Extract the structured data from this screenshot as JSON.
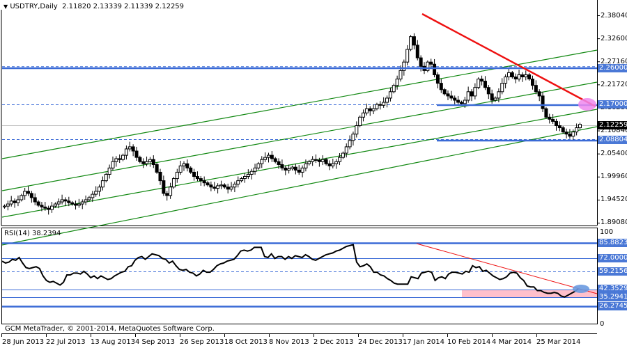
{
  "header": {
    "symbol_timeframe": "USDTRY,Daily",
    "ohlc": "2.11820 2.13339 2.11339 2.12259",
    "title_full": "USDTRY,Daily  2.11820 2.13339 2.11339 2.12259"
  },
  "indicator": {
    "title": "RSI(14) 38.2394"
  },
  "footer": {
    "copyright": "GCM MetaTrader, © 2001-2014, MetaQuotes Software Corp."
  },
  "colors": {
    "candle": "#000000",
    "channel": "#118811",
    "trendline": "#ee1111",
    "level": "#3a6ad6",
    "current_price_line": "#c0c0c0",
    "highlight_pink": "#ee88ee",
    "highlight_blue": "#6a9ae0",
    "rsi_zone": "#ffc0cb"
  },
  "chart_data": [
    {
      "type": "candlestick",
      "title": "USDTRY,Daily",
      "ohlc_last": {
        "open": 2.1182,
        "high": 2.13339,
        "low": 2.11339,
        "close": 2.12259
      },
      "y_ticks": [
        "2.38040",
        "2.32600",
        "2.27160",
        "2.21720",
        "2.16280",
        "2.10840",
        "2.05400",
        "1.99960",
        "1.94520",
        "1.89080"
      ],
      "ylim": [
        1.8908,
        2.3804
      ],
      "x_ticks": [
        "28 Jun 2013",
        "22 Jul 2013",
        "13 Aug 2013",
        "4 Sep 2013",
        "26 Sep 2013",
        "18 Oct 2013",
        "8 Nov 2013",
        "2 Dec 2013",
        "24 Dec 2013",
        "17 Jan 2014",
        "10 Feb 2014",
        "4 Mar 2014",
        "25 Mar 2014"
      ],
      "horizontal_levels": [
        {
          "label": "2.26000",
          "value": 2.26,
          "style": "solid-partial"
        },
        {
          "label": "2.17000",
          "value": 2.17,
          "style": "solid-partial"
        },
        {
          "label": "2.08804",
          "value": 2.08804,
          "style": "solid-partial"
        }
      ],
      "current_price": {
        "label": "2.12259",
        "value": 2.12259
      },
      "trendline": {
        "from": {
          "date": "19 Jan 2014",
          "value": 2.376
        },
        "to": {
          "date": "9 Apr 2014",
          "value": 2.165
        }
      },
      "channel": "4 parallel ascending green lines",
      "closes_approx": [
        1.93,
        1.935,
        1.942,
        1.938,
        1.945,
        1.955,
        1.965,
        1.96,
        1.95,
        1.94,
        1.932,
        1.928,
        1.925,
        1.922,
        1.93,
        1.935,
        1.94,
        1.945,
        1.942,
        1.938,
        1.935,
        1.932,
        1.935,
        1.94,
        1.945,
        1.95,
        1.958,
        1.965,
        1.975,
        1.99,
        2.005,
        2.02,
        2.035,
        2.042,
        2.04,
        2.05,
        2.065,
        2.07,
        2.06,
        2.045,
        2.035,
        2.03,
        2.035,
        2.04,
        2.028,
        2.01,
        1.99,
        1.96,
        1.955,
        1.975,
        1.995,
        2.01,
        2.025,
        2.03,
        2.02,
        2.01,
        2.0,
        1.995,
        1.99,
        1.985,
        1.98,
        1.975,
        1.972,
        1.978,
        1.98,
        1.975,
        1.97,
        1.975,
        1.982,
        1.99,
        1.995,
        2.0,
        2.005,
        2.012,
        2.02,
        2.03,
        2.04,
        2.045,
        2.05,
        2.042,
        2.035,
        2.028,
        2.02,
        2.015,
        2.018,
        2.022,
        2.015,
        2.01,
        2.02,
        2.03,
        2.035,
        2.04,
        2.038,
        2.035,
        2.04,
        2.03,
        2.025,
        2.03,
        2.035,
        2.045,
        2.055,
        2.07,
        2.085,
        2.1,
        2.12,
        2.14,
        2.15,
        2.16,
        2.155,
        2.16,
        2.17,
        2.168,
        2.175,
        2.185,
        2.2,
        2.215,
        2.23,
        2.25,
        2.27,
        2.3,
        2.33,
        2.31,
        2.28,
        2.26,
        2.25,
        2.27,
        2.265,
        2.24,
        2.22,
        2.205,
        2.195,
        2.19,
        2.185,
        2.18,
        2.175,
        2.172,
        2.18,
        2.2,
        2.19,
        2.21,
        2.23,
        2.225,
        2.21,
        2.195,
        2.18,
        2.185,
        2.2,
        2.22,
        2.235,
        2.245,
        2.235,
        2.23,
        2.24,
        2.235,
        2.24,
        2.23,
        2.215,
        2.2,
        2.19,
        2.16,
        2.14,
        2.135,
        2.13,
        2.12,
        2.115,
        2.105,
        2.1,
        2.095,
        2.105,
        2.115,
        2.123
      ]
    },
    {
      "type": "line",
      "title": "RSI(14) 38.2394",
      "value": 38.2394,
      "ylim": [
        0,
        100
      ],
      "y_ticks": [
        "100",
        "85.88235",
        "72.00000",
        "59.21569",
        "42.35294",
        "35.29412",
        "26.27451",
        "0"
      ],
      "levels": [
        85.88235,
        72.0,
        59.21569,
        42.35294,
        35.29412,
        26.27451
      ],
      "trendline": {
        "from_rsi": 86,
        "to_rsi": 40
      },
      "support_zone": [
        35.29412,
        42.35294
      ],
      "values_approx": [
        68,
        66,
        67,
        70,
        69,
        72,
        66,
        61,
        60,
        61,
        62,
        60,
        52,
        47,
        45,
        46,
        44,
        42,
        45,
        53,
        53,
        55,
        55,
        54,
        57,
        54,
        50,
        52,
        49,
        52,
        50,
        48,
        49,
        52,
        54,
        56,
        57,
        62,
        63,
        69,
        72,
        73,
        70,
        73,
        76,
        75,
        74,
        71,
        70,
        66,
        68,
        63,
        59,
        58,
        59,
        56,
        55,
        52,
        54,
        58,
        56,
        56,
        59,
        63,
        65,
        66,
        68,
        69,
        70,
        74,
        79,
        80,
        79,
        80,
        83,
        83,
        83,
        73,
        72,
        76,
        71,
        73,
        73,
        70,
        73,
        71,
        74,
        73,
        72,
        75,
        73,
        70,
        69,
        71,
        73,
        75,
        76,
        77,
        79,
        80,
        82,
        84,
        85,
        86,
        67,
        62,
        63,
        65,
        62,
        56,
        56,
        53,
        52,
        49,
        47,
        44,
        43,
        43,
        43,
        43,
        51,
        50,
        49,
        55,
        56,
        57,
        56,
        47,
        50,
        51,
        49,
        54,
        56,
        56,
        55,
        54,
        57,
        56,
        63,
        61,
        62,
        57,
        58,
        55,
        52,
        50,
        48,
        49,
        51,
        55,
        56,
        55,
        50,
        47,
        41,
        40,
        40,
        36,
        36,
        34,
        33,
        33,
        34,
        33,
        30,
        29,
        31,
        33,
        35,
        38
      ]
    }
  ]
}
